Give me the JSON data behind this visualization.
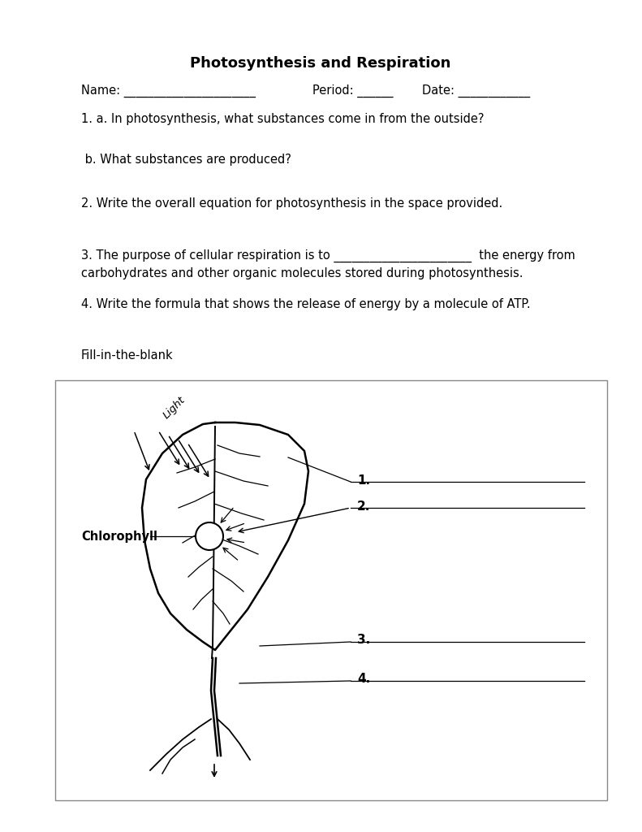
{
  "title": "Photosynthesis and Respiration",
  "title_fontsize": 13,
  "bg_color": "#ffffff",
  "text_color": "#000000",
  "name_line": "Name: ______________________",
  "period_line": "Period: ______",
  "date_line": "Date: ____________",
  "q1a": "1. a. In photosynthesis, what substances come in from the outside?",
  "q1b": " b. What substances are produced?",
  "q2": "2. Write the overall equation for photosynthesis in the space provided.",
  "q3a": "3. The purpose of cellular respiration is to _______________________  the energy from",
  "q3b": "carbohydrates and other organic molecules stored during photosynthesis.",
  "q4": "4. Write the formula that shows the release of energy by a molecule of ATP.",
  "fill_label": "Fill-in-the-blank",
  "label1": "1.",
  "label2": "2.",
  "label3": "3.",
  "label4": "4.",
  "chlorophyll_label": "Chlorophyll",
  "light_label": "Light"
}
